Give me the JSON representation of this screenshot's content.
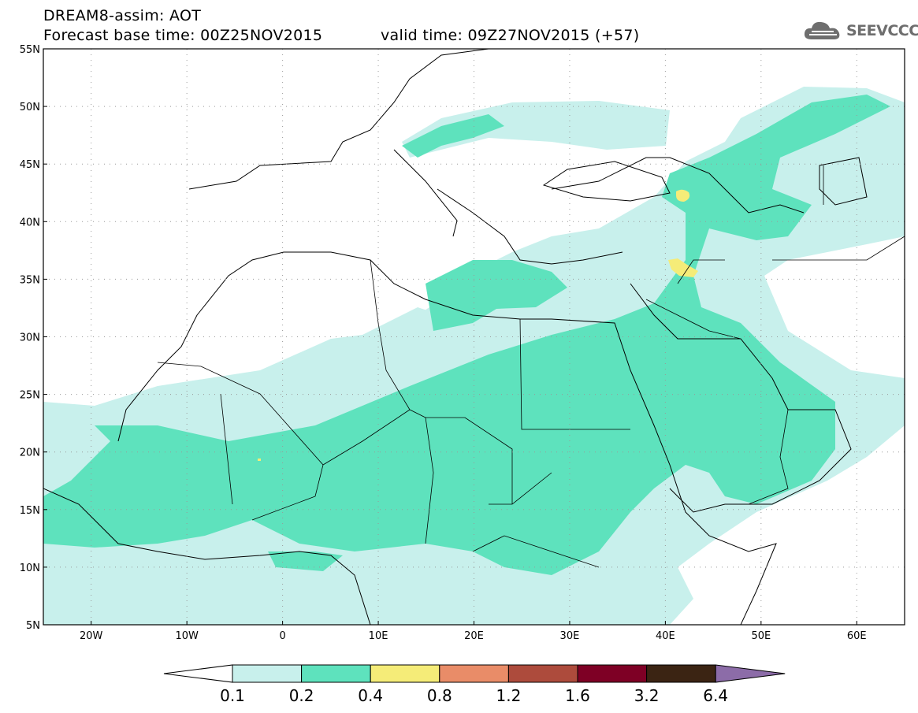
{
  "header": {
    "line1": "DREAM8-assim: AOT",
    "line2": "Forecast base time: 00Z25NOV2015",
    "valid": "valid time: 09Z27NOV2015 (+57)",
    "logo_text": "SEEVCCC",
    "logo_icon": "cloud-icon"
  },
  "map": {
    "lon_range": [
      -25,
      65
    ],
    "lat_range": [
      5,
      55
    ],
    "lat_labels": [
      "55N",
      "50N",
      "45N",
      "40N",
      "35N",
      "30N",
      "25N",
      "20N",
      "15N",
      "10N",
      "5N"
    ],
    "lon_labels": [
      "20W",
      "10W",
      "0",
      "10E",
      "20E",
      "30E",
      "40E",
      "50E",
      "60E"
    ],
    "grid": "dotted"
  },
  "colorbar": {
    "colors": [
      "#ffffff",
      "#c8f0ec",
      "#5ee2bd",
      "#f5ec78",
      "#e98c68",
      "#ad4b3c",
      "#7e0025",
      "#3b2413",
      "#8c6ca8"
    ],
    "labels": [
      "0.1",
      "0.2",
      "0.4",
      "0.8",
      "1.2",
      "1.6",
      "3.2",
      "6.4"
    ]
  }
}
